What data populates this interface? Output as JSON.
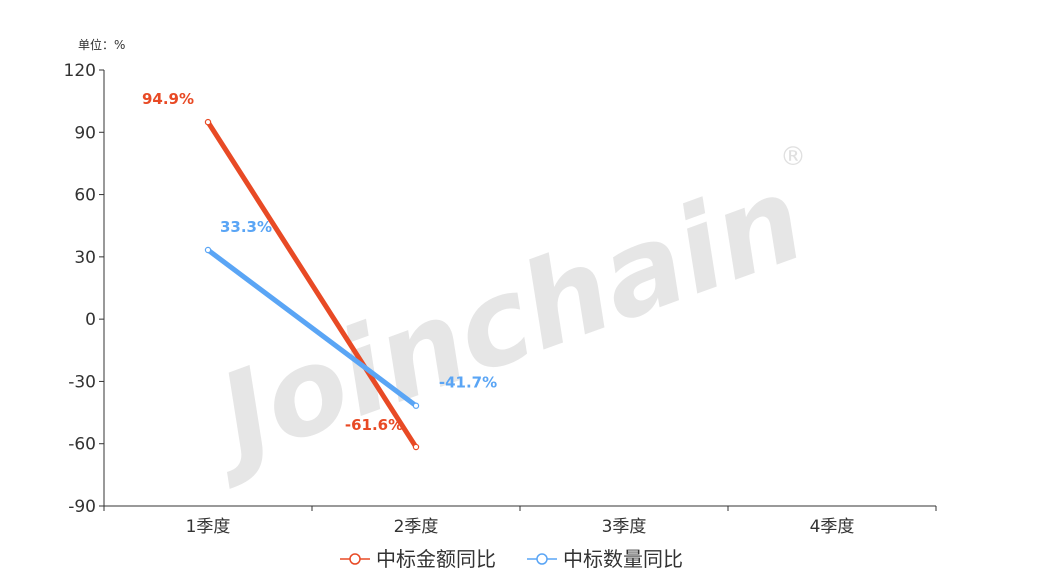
{
  "watermark": "Joinchain",
  "watermark_mark": "®",
  "chart_data": {
    "type": "line",
    "unit_label": "单位：%",
    "categories": [
      "1季度",
      "2季度",
      "3季度",
      "4季度"
    ],
    "ylim": [
      -90,
      120
    ],
    "yticks": [
      -90,
      -60,
      -30,
      0,
      30,
      60,
      90,
      120
    ],
    "grid": false,
    "legend_position": "bottom",
    "series": [
      {
        "name": "中标金额同比",
        "color": "#e84a25",
        "values": [
          94.9,
          -61.6,
          null,
          null
        ],
        "labels": [
          "94.9%",
          "-61.6%"
        ]
      },
      {
        "name": "中标数量同比",
        "color": "#5aa5f5",
        "values": [
          33.3,
          -41.7,
          null,
          null
        ],
        "labels": [
          "33.3%",
          "-41.7%"
        ]
      }
    ]
  }
}
